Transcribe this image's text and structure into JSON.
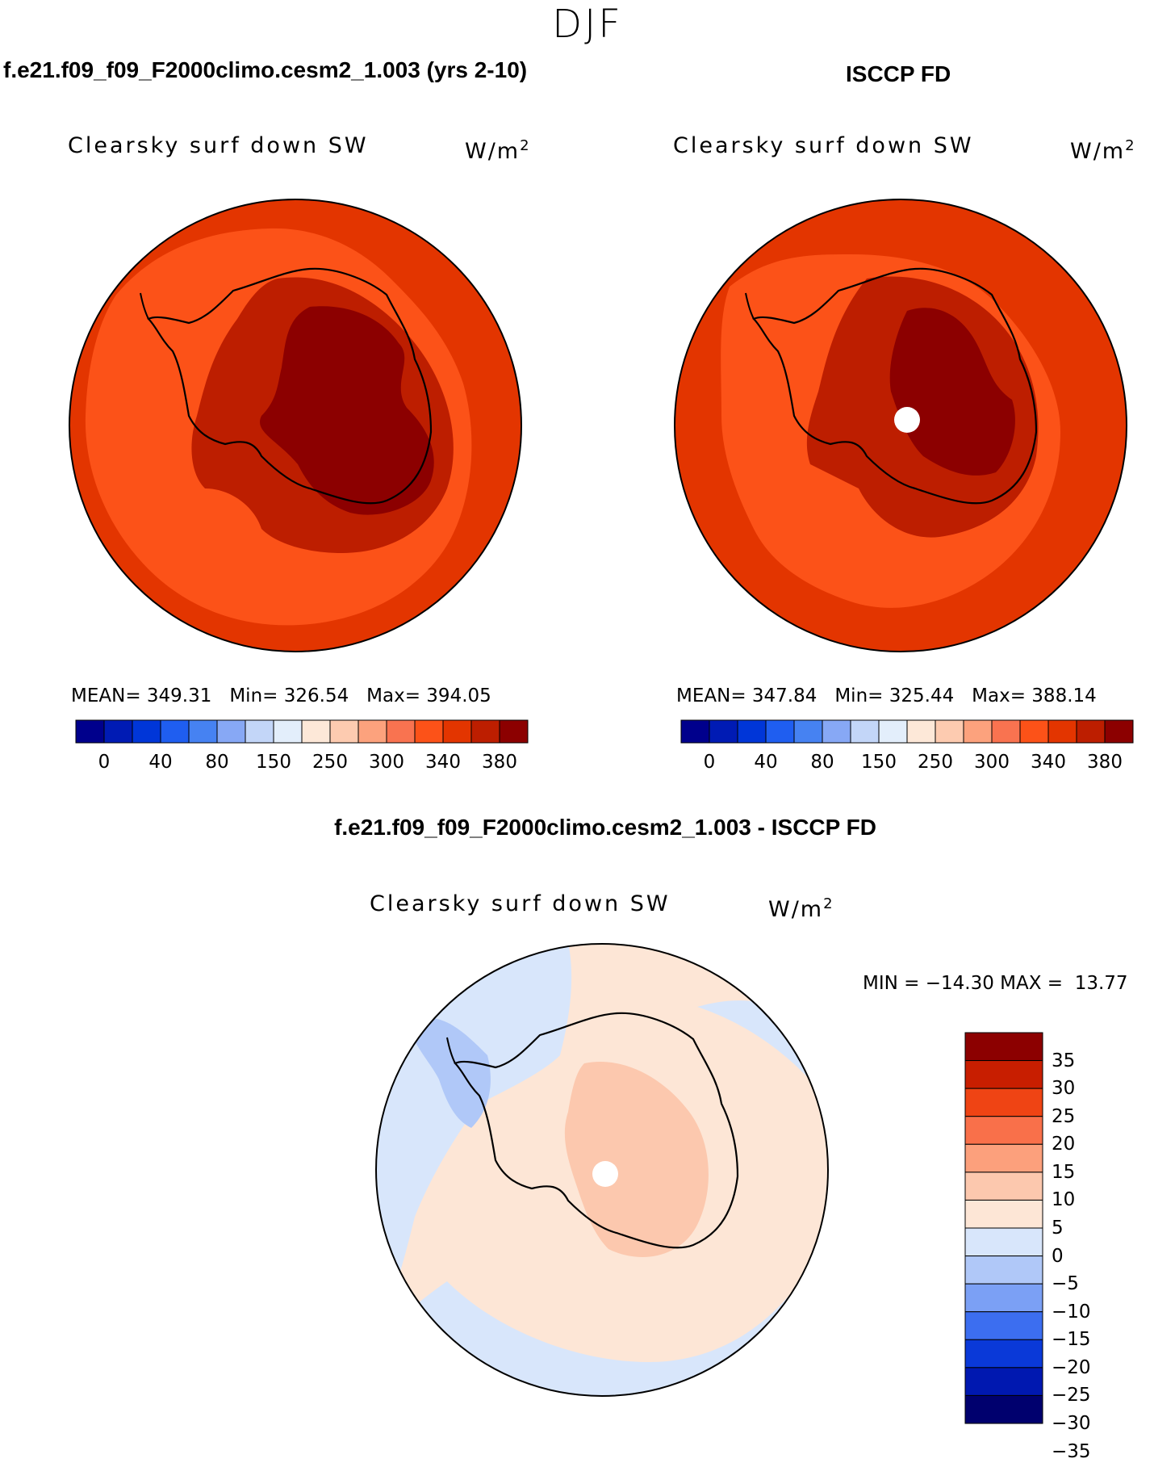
{
  "season": "DJF",
  "panels": {
    "model": {
      "case_title": "f.e21.f09_f09_F2000climo.cesm2_1.003 (yrs 2-10)",
      "variable": "Clearsky surf down SW",
      "units": "W/m",
      "units_exp": "2",
      "stats": {
        "mean_label": "MEAN=",
        "mean": "349.31",
        "min_label": "Min=",
        "min": "326.54",
        "max_label": "Max=",
        "max": "394.05"
      }
    },
    "obs": {
      "case_title": "ISCCP FD",
      "variable": "Clearsky surf down SW",
      "units": "W/m",
      "units_exp": "2",
      "stats": {
        "mean_label": "MEAN=",
        "mean": "347.84",
        "min_label": "Min=",
        "min": "325.44",
        "max_label": "Max=",
        "max": "388.14"
      }
    },
    "diff": {
      "case_title": "f.e21.f09_f09_F2000climo.cesm2_1.003 - ISCCP FD",
      "variable": "Clearsky surf down SW",
      "units": "W/m",
      "units_exp": "2",
      "stats_text": "MIN = −14.30 MAX =  13.77"
    }
  },
  "abs_colorbar": {
    "colors": [
      "#00008c",
      "#001bb4",
      "#0036d8",
      "#1f5ef0",
      "#4682f2",
      "#87a8f5",
      "#c3d6f8",
      "#e3eefb",
      "#fde8d8",
      "#fdcbb0",
      "#fca27d",
      "#f97350",
      "#fc5218",
      "#e33500",
      "#bd1e00",
      "#8c0000"
    ],
    "tick_labels": [
      "0",
      "40",
      "80",
      "150",
      "250",
      "300",
      "340",
      "380"
    ]
  },
  "diff_colorbar": {
    "colors": [
      "#00006e",
      "#0018b0",
      "#0a39d8",
      "#3c6ef0",
      "#7ba0f5",
      "#b0c8f8",
      "#d8e6fb",
      "#fde6d6",
      "#fcc8ae",
      "#fca07c",
      "#f9704a",
      "#ef4414",
      "#c81e00",
      "#8c0000"
    ],
    "tick_labels": [
      "35",
      "30",
      "25",
      "20",
      "15",
      "10",
      "5",
      "0",
      "−5",
      "−10",
      "−15",
      "−20",
      "−25",
      "−30",
      "−35"
    ]
  }
}
